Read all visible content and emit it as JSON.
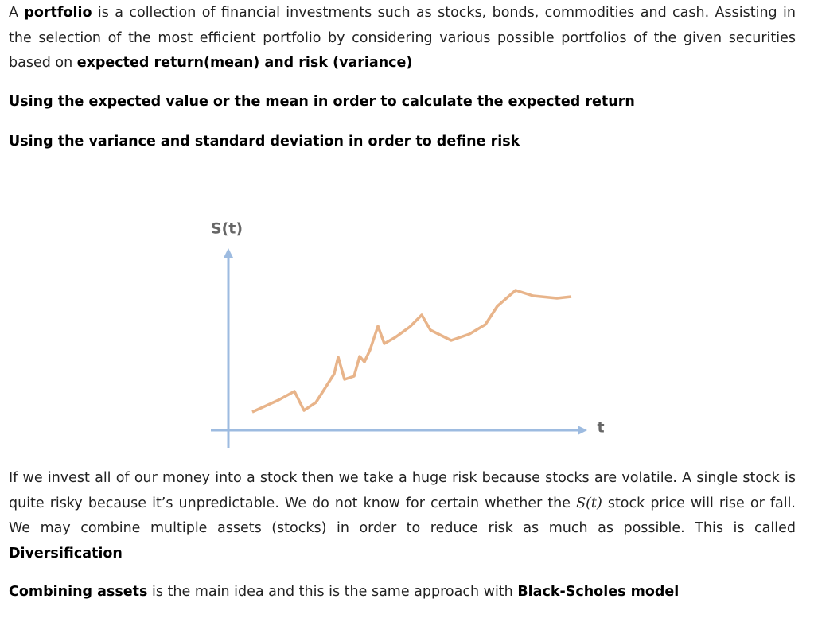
{
  "paragraphs": [
    [
      "A ",
      "portfolio",
      " is a collection of financial investments such as stocks, bonds, commodities and cash. Assisting in the selection of the most efficient portfolio by considering various possible portfolios of the given securities based on ",
      "expected return(mean) and risk (variance)"
    ],
    [
      "Using the expected value or the mean in order to calculate the expected return"
    ],
    [
      "Using the variance and standard deviation in order to define risk"
    ],
    [
      "If we invest all of our money into a stock then we take a huge risk because stocks are volatile. A single stock is quite risky because it’s unpredictable. We do not know for certain whether the ",
      "S(t)",
      " stock price will rise or fall. We may combine multiple assets (stocks) in order to reduce risk as much as possible. This is called ",
      "Diversification"
    ],
    [
      "Combining assets",
      " is the main idea and this is the same approach with ",
      "Black-Scholes model"
    ]
  ],
  "figure": {
    "y_label": "S(t)",
    "x_label": "t"
  }
}
